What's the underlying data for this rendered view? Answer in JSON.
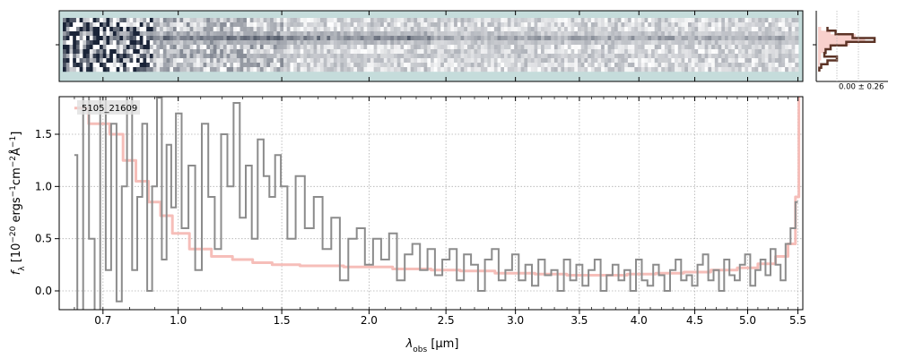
{
  "chart_data": [
    {
      "panel": "2d-spectrum",
      "type": "heatmap",
      "background": "#c5dcdb",
      "trace_rows": [
        {
          "row": 3,
          "weight": 0.6
        },
        {
          "row": 4,
          "weight": 1.0
        },
        {
          "row": 5,
          "weight": 0.55
        },
        {
          "row": 8,
          "weight": 0.45
        }
      ],
      "strong_noise_xmax": 0.9,
      "cmap": [
        "#ffffff",
        "#1a2438"
      ]
    },
    {
      "panel": "profile",
      "type": "line",
      "annotation": "0.00 ± 0.26",
      "model_color": "#f5b7b1",
      "data_color": "#5c3326",
      "profile": [
        0.15,
        0.28,
        0.55,
        0.9,
        0.45,
        0.2,
        0.12,
        0.1,
        0.3,
        0.15,
        0.05,
        0.02
      ],
      "model": [
        0.05,
        0.2,
        0.6,
        0.75,
        0.5,
        0.2,
        0.1,
        0.05,
        0.05,
        0.03,
        0.02,
        0.01
      ]
    },
    {
      "panel": "1d-spectrum",
      "type": "line",
      "label": "5105_21609",
      "xlabel_main": "λ",
      "xlabel_sub": "obs",
      "xlabel_unit": " [μm]",
      "ylabel": "f",
      "ylabel_sub": "λ",
      "ylabel_unit_a": " [10",
      "ylabel_exp1": "−20",
      "ylabel_unit_b": " ergs",
      "ylabel_exp2": "−1",
      "ylabel_unit_c": "cm",
      "ylabel_exp3": "−2",
      "ylabel_unit_d": "Å",
      "ylabel_exp4": "−1",
      "ylabel_unit_e": "]",
      "xticks": [
        "0.7",
        "1.0",
        "1.5",
        "2.0",
        "2.5",
        "3.0",
        "3.5",
        "4.0",
        "4.5",
        "5.0",
        "5.5"
      ],
      "xtick_values": [
        0.7,
        1.0,
        1.5,
        2.0,
        2.5,
        3.0,
        3.5,
        4.0,
        4.5,
        5.0,
        5.5
      ],
      "yticks": [
        "0.0",
        "0.5",
        "1.0",
        "1.5"
      ],
      "ytick_values": [
        0.0,
        0.5,
        1.0,
        1.5
      ],
      "xlim": [
        0.55,
        5.55
      ],
      "ylim": [
        -0.18,
        1.86
      ],
      "x_scale": "sqrt",
      "grid": true,
      "data_color": "#8c8c8c",
      "model_color": "#f5b7b1",
      "model_x": [
        0.6,
        0.7,
        0.75,
        0.8,
        0.85,
        0.9,
        0.95,
        1.0,
        1.1,
        1.2,
        1.3,
        1.4,
        1.5,
        1.7,
        2.0,
        2.3,
        2.5,
        2.7,
        3.0,
        3.3,
        3.5,
        3.8,
        4.0,
        4.3,
        4.5,
        4.8,
        5.0,
        5.2,
        5.35,
        5.45,
        5.5,
        5.52
      ],
      "model_y": [
        1.75,
        1.6,
        1.5,
        1.25,
        1.05,
        0.85,
        0.72,
        0.55,
        0.4,
        0.33,
        0.3,
        0.27,
        0.25,
        0.24,
        0.23,
        0.21,
        0.2,
        0.19,
        0.17,
        0.16,
        0.15,
        0.15,
        0.16,
        0.17,
        0.18,
        0.2,
        0.22,
        0.26,
        0.33,
        0.45,
        0.9,
        1.9
      ],
      "data_x": [
        0.6,
        0.62,
        0.64,
        0.66,
        0.68,
        0.7,
        0.72,
        0.74,
        0.76,
        0.78,
        0.8,
        0.82,
        0.84,
        0.86,
        0.88,
        0.9,
        0.92,
        0.94,
        0.96,
        0.98,
        1.0,
        1.03,
        1.06,
        1.09,
        1.12,
        1.15,
        1.18,
        1.21,
        1.24,
        1.27,
        1.3,
        1.33,
        1.36,
        1.39,
        1.42,
        1.45,
        1.48,
        1.51,
        1.55,
        1.6,
        1.65,
        1.7,
        1.75,
        1.8,
        1.85,
        1.9,
        1.95,
        2.0,
        2.05,
        2.1,
        2.15,
        2.2,
        2.25,
        2.3,
        2.35,
        2.4,
        2.45,
        2.5,
        2.55,
        2.6,
        2.65,
        2.7,
        2.75,
        2.8,
        2.85,
        2.9,
        2.95,
        3.0,
        3.05,
        3.1,
        3.15,
        3.2,
        3.25,
        3.3,
        3.35,
        3.4,
        3.45,
        3.5,
        3.55,
        3.6,
        3.65,
        3.7,
        3.75,
        3.8,
        3.85,
        3.9,
        3.95,
        4.0,
        4.05,
        4.1,
        4.15,
        4.2,
        4.25,
        4.3,
        4.35,
        4.4,
        4.45,
        4.5,
        4.55,
        4.6,
        4.65,
        4.7,
        4.75,
        4.8,
        4.85,
        4.9,
        4.95,
        5.0,
        5.05,
        5.1,
        5.15,
        5.2,
        5.25,
        5.3,
        5.35,
        5.4,
        5.45,
        5.5
      ],
      "data_y": [
        1.3,
        -0.2,
        1.9,
        0.5,
        -0.2,
        1.9,
        0.2,
        1.6,
        -0.1,
        1.0,
        1.9,
        0.2,
        0.9,
        1.6,
        0.0,
        1.0,
        1.85,
        0.3,
        1.4,
        0.8,
        1.7,
        0.6,
        1.2,
        0.2,
        1.6,
        0.9,
        0.4,
        1.5,
        1.0,
        1.8,
        0.7,
        1.2,
        0.5,
        1.45,
        1.1,
        0.9,
        1.3,
        1.0,
        0.5,
        1.1,
        0.6,
        0.9,
        0.4,
        0.7,
        0.1,
        0.5,
        0.6,
        0.25,
        0.5,
        0.3,
        0.55,
        0.1,
        0.35,
        0.45,
        0.2,
        0.4,
        0.15,
        0.3,
        0.4,
        0.1,
        0.35,
        0.25,
        0.0,
        0.3,
        0.4,
        0.1,
        0.2,
        0.35,
        0.1,
        0.25,
        0.05,
        0.3,
        0.15,
        0.2,
        0.0,
        0.3,
        0.1,
        0.25,
        0.05,
        0.2,
        0.3,
        0.0,
        0.15,
        0.25,
        0.1,
        0.2,
        0.0,
        0.3,
        0.1,
        0.05,
        0.25,
        0.15,
        0.0,
        0.2,
        0.3,
        0.1,
        0.15,
        0.05,
        0.25,
        0.35,
        0.1,
        0.2,
        0.0,
        0.3,
        0.15,
        0.1,
        0.25,
        0.35,
        0.05,
        0.2,
        0.3,
        0.15,
        0.4,
        0.25,
        0.1,
        0.45,
        0.6,
        0.85
      ]
    }
  ]
}
